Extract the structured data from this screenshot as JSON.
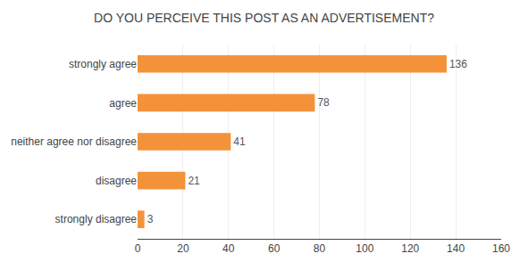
{
  "chart_data": {
    "type": "bar",
    "orientation": "horizontal",
    "title": "DO YOU PERCEIVE THIS POST AS AN ADVERTISEMENT?",
    "categories": [
      "strongly agree",
      "agree",
      "neither agree nor disagree",
      "disagree",
      "strongly disagree"
    ],
    "values": [
      136,
      78,
      41,
      21,
      3
    ],
    "color": "#F4923A",
    "xlim": [
      0,
      160
    ],
    "xticks": [
      0,
      20,
      40,
      60,
      80,
      100,
      120,
      140,
      160
    ],
    "grid": true,
    "data_labels": true
  }
}
